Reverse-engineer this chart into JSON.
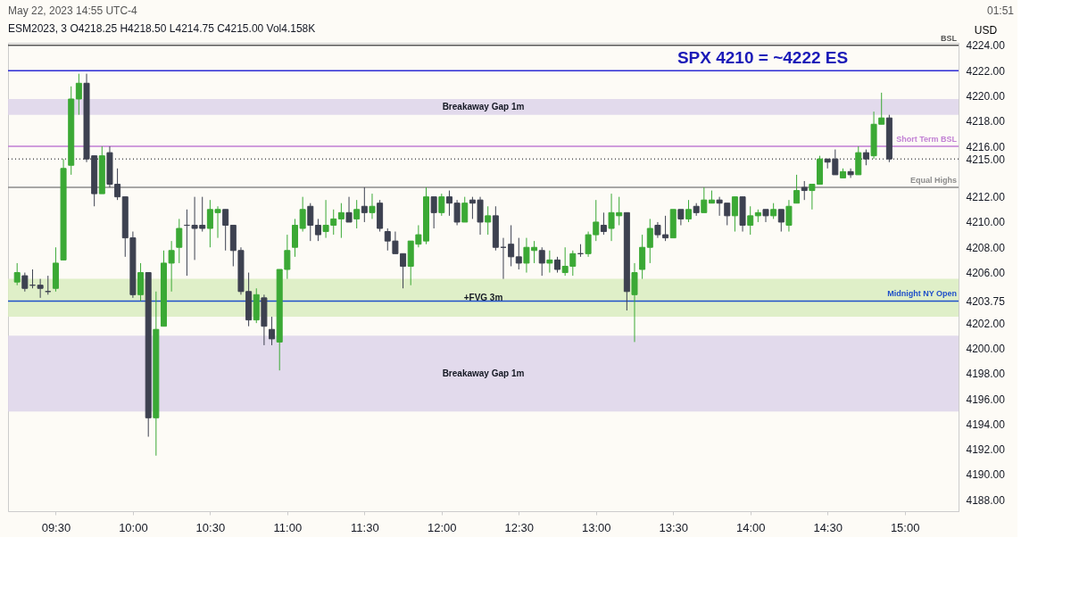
{
  "chart_data": {
    "type": "candlestick",
    "title": "ESM2023, 3  O4218.25  H4218.50  L4214.75  C4215.00  Vol4.158K",
    "ylabel": "USD",
    "x": [
      9.25,
      9.3,
      9.35,
      9.4,
      9.45,
      9.5,
      9.55,
      9.6,
      9.65,
      9.7,
      9.75,
      9.8,
      9.85,
      9.9,
      9.95,
      10,
      10.05,
      10.1,
      10.15,
      10.2,
      10.25,
      10.3,
      10.35,
      10.4,
      10.45,
      10.5,
      10.55,
      10.6,
      10.65,
      10.7,
      10.75,
      10.8,
      10.85,
      10.9,
      10.95,
      11,
      11.05,
      11.1,
      11.15,
      11.2,
      11.25,
      11.3,
      11.35,
      11.4,
      11.45,
      11.5,
      11.55,
      11.6,
      11.65,
      11.7,
      11.75,
      11.8,
      11.85,
      11.9,
      11.95,
      12,
      12.05,
      12.1,
      12.15,
      12.2,
      12.25,
      12.3,
      12.35,
      12.4,
      12.45,
      12.5,
      12.55,
      12.6,
      12.65,
      12.7,
      12.75,
      12.8,
      12.85,
      12.9,
      12.95,
      13,
      13.05,
      13.1,
      13.15,
      13.2,
      13.25,
      13.3,
      13.35,
      13.4,
      13.45,
      13.5,
      13.55,
      13.6,
      13.65,
      13.7,
      13.75,
      13.8,
      13.85,
      13.9,
      13.95,
      14,
      14.05,
      14.1,
      14.15,
      14.2,
      14.25,
      14.3,
      14.35,
      14.4,
      14.45,
      14.5,
      14.55,
      14.6,
      14.65,
      14.7,
      14.75,
      14.8,
      14.85,
      14.9
    ],
    "ohlc": [
      [
        4205.25,
        4206.75,
        4205,
        4206
      ],
      [
        4205.75,
        4206,
        4204.5,
        4204.75
      ],
      [
        4205,
        4206.25,
        4204.75,
        4205
      ],
      [
        4205,
        4205.5,
        4204,
        4204.75
      ],
      [
        4204.5,
        4205.75,
        4204.25,
        4204.5
      ],
      [
        4204.75,
        4208,
        4204.5,
        4206.75
      ],
      [
        4207,
        4215,
        4207,
        4214.25
      ],
      [
        4214.5,
        4220.75,
        4213.75,
        4219.75
      ],
      [
        4219.75,
        4221.75,
        4218.5,
        4221
      ],
      [
        4221,
        4221.75,
        4214.75,
        4215
      ],
      [
        4215.25,
        4215.25,
        4211.25,
        4212.25
      ],
      [
        4212.25,
        4216,
        4212.25,
        4215.25
      ],
      [
        4215.5,
        4216,
        4212.75,
        4213
      ],
      [
        4213,
        4214.25,
        4211.75,
        4212
      ],
      [
        4212,
        4212,
        4207.25,
        4208.75
      ],
      [
        4208.75,
        4209.25,
        4204,
        4204.25
      ],
      [
        4204.25,
        4206.75,
        4203.75,
        4206
      ],
      [
        4206,
        4206,
        4193,
        4194.5
      ],
      [
        4194.5,
        4204.5,
        4191.5,
        4201.5
      ],
      [
        4201.75,
        4207.75,
        4201.75,
        4206.75
      ],
      [
        4206.75,
        4208.5,
        4204.5,
        4207.75
      ],
      [
        4208,
        4210.25,
        4206.75,
        4209.5
      ],
      [
        4209.75,
        4211,
        4205.75,
        4209.75
      ],
      [
        4209.75,
        4212,
        4207,
        4209.5
      ],
      [
        4209.75,
        4212,
        4209.25,
        4209.5
      ],
      [
        4209.5,
        4211.75,
        4208,
        4211
      ],
      [
        4210.75,
        4211.25,
        4208.75,
        4211
      ],
      [
        4211,
        4211,
        4207.75,
        4209.75
      ],
      [
        4209.75,
        4209.75,
        4206.5,
        4207.75
      ],
      [
        4207.75,
        4208,
        4204.25,
        4204.5
      ],
      [
        4204.5,
        4206,
        4201.75,
        4202.25
      ],
      [
        4202.25,
        4204.75,
        4202,
        4204.25
      ],
      [
        4204,
        4204.25,
        4200.25,
        4201.75
      ],
      [
        4201.5,
        4202.5,
        4200.25,
        4200.75
      ],
      [
        4200.5,
        4206.25,
        4198.25,
        4206.25
      ],
      [
        4206.25,
        4209,
        4205.5,
        4207.75
      ],
      [
        4208,
        4210.25,
        4207.25,
        4209.75
      ],
      [
        4209.5,
        4212,
        4209.25,
        4211
      ],
      [
        4211.25,
        4211.5,
        4208.5,
        4209.75
      ],
      [
        4209.75,
        4210.25,
        4208.5,
        4209
      ],
      [
        4209.25,
        4211.75,
        4208.75,
        4209.75
      ],
      [
        4209.75,
        4211,
        4209,
        4210.25
      ],
      [
        4210.25,
        4211.5,
        4208.75,
        4210.75
      ],
      [
        4210.75,
        4212,
        4210,
        4210
      ],
      [
        4210.25,
        4211.75,
        4209.5,
        4211
      ],
      [
        4211.25,
        4212.75,
        4210,
        4210.75
      ],
      [
        4210.75,
        4212.25,
        4210.25,
        4211.25
      ],
      [
        4211.5,
        4211.75,
        4209.25,
        4209.5
      ],
      [
        4209.25,
        4209.5,
        4207.75,
        4208.5
      ],
      [
        4208.5,
        4209.25,
        4207.5,
        4207.5
      ],
      [
        4207.5,
        4207.5,
        4204.75,
        4206.5
      ],
      [
        4206.5,
        4208.5,
        4205,
        4208.5
      ],
      [
        4208.25,
        4209.75,
        4208,
        4209
      ],
      [
        4208.5,
        4212.75,
        4208.25,
        4212
      ],
      [
        4212,
        4212,
        4209.5,
        4210.75
      ],
      [
        4210.75,
        4212.25,
        4210.5,
        4212
      ],
      [
        4212,
        4212.5,
        4210.5,
        4211.5
      ],
      [
        4211.5,
        4211.75,
        4209.75,
        4210
      ],
      [
        4210,
        4212,
        4210,
        4211.5
      ],
      [
        4211.75,
        4212,
        4210.25,
        4211.5
      ],
      [
        4211.75,
        4212,
        4209,
        4210
      ],
      [
        4210,
        4211.25,
        4209,
        4210.5
      ],
      [
        4210.5,
        4211.25,
        4207.75,
        4208
      ],
      [
        4208,
        4208.75,
        4205.5,
        4208
      ],
      [
        4208.25,
        4209.75,
        4206.5,
        4207.25
      ],
      [
        4207.25,
        4208.75,
        4206.25,
        4206.75
      ],
      [
        4206.75,
        4208.75,
        4206,
        4208
      ],
      [
        4207.75,
        4208.5,
        4206.75,
        4208
      ],
      [
        4207.75,
        4208,
        4205.75,
        4206.75
      ],
      [
        4206.75,
        4207.75,
        4206,
        4207
      ],
      [
        4207,
        4207.25,
        4206,
        4206.25
      ],
      [
        4206,
        4208,
        4205.75,
        4206.5
      ],
      [
        4206.5,
        4207.75,
        4205.75,
        4207.5
      ],
      [
        4207.5,
        4208.25,
        4207.25,
        4207.5
      ],
      [
        4207.5,
        4209.25,
        4207.25,
        4209
      ],
      [
        4209,
        4211.75,
        4208.5,
        4210
      ],
      [
        4209.75,
        4210.75,
        4209,
        4209.25
      ],
      [
        4209.5,
        4212.25,
        4208.5,
        4210.75
      ],
      [
        4210.5,
        4212,
        4209.75,
        4210.75
      ],
      [
        4210.75,
        4210.75,
        4203,
        4204.5
      ],
      [
        4204.25,
        4206.75,
        4200.5,
        4206
      ],
      [
        4206.25,
        4209,
        4205.5,
        4208
      ],
      [
        4208,
        4210.25,
        4206.75,
        4209.5
      ],
      [
        4209.75,
        4210,
        4208.75,
        4209
      ],
      [
        4209,
        4210.5,
        4208.5,
        4208.75
      ],
      [
        4208.75,
        4211,
        4208.75,
        4211
      ],
      [
        4211,
        4211,
        4209.75,
        4210.25
      ],
      [
        4210.25,
        4211.75,
        4210,
        4211
      ],
      [
        4211.25,
        4211.5,
        4210.5,
        4210.75
      ],
      [
        4210.75,
        4212.75,
        4210.75,
        4211.75
      ],
      [
        4211.5,
        4212.5,
        4211.5,
        4211.75
      ],
      [
        4211.75,
        4212,
        4210.5,
        4211.5
      ],
      [
        4211.5,
        4211.5,
        4209.75,
        4210.5
      ],
      [
        4210.5,
        4212,
        4209.25,
        4212
      ],
      [
        4212,
        4212,
        4209.25,
        4209.75
      ],
      [
        4209.75,
        4211.25,
        4209,
        4210.5
      ],
      [
        4210.5,
        4211,
        4210,
        4210.75
      ],
      [
        4211,
        4211,
        4210,
        4210.5
      ],
      [
        4210.5,
        4211.5,
        4210.25,
        4211
      ],
      [
        4211,
        4211,
        4209.25,
        4210
      ],
      [
        4209.75,
        4211.75,
        4209.25,
        4211.25
      ],
      [
        4211.5,
        4213.75,
        4211.5,
        4212.5
      ],
      [
        4212.75,
        4213.25,
        4211.75,
        4212.5
      ],
      [
        4212.5,
        4213,
        4211,
        4213
      ],
      [
        4213,
        4215.25,
        4213,
        4215
      ],
      [
        4215,
        4215,
        4214.25,
        4214.75
      ],
      [
        4215,
        4215.75,
        4213.75,
        4213.75
      ],
      [
        4213.5,
        4214.25,
        4213.5,
        4214
      ],
      [
        4214,
        4214.25,
        4213.5,
        4213.75
      ],
      [
        4213.75,
        4216,
        4213.75,
        4215.5
      ],
      [
        4215.5,
        4215.75,
        4214.5,
        4215
      ],
      [
        4215.25,
        4218.75,
        4215,
        4217.75
      ],
      [
        4217.75,
        4220.25,
        4217.75,
        4218.25
      ],
      [
        4218.25,
        4218.5,
        4214.75,
        4215
      ]
    ],
    "colors": [
      "#3ba935",
      "#3d4150",
      "#3d4150",
      "#3d4150",
      "#3d4150",
      "#3ba935",
      "#3ba935",
      "#3ba935",
      "#3ba935",
      "#3d4150",
      "#3d4150",
      "#3ba935",
      "#3d4150",
      "#3d4150",
      "#3d4150",
      "#3d4150",
      "#3ba935",
      "#3d4150",
      "#3ba935",
      "#3ba935",
      "#3ba935",
      "#3ba935",
      "#3d4150",
      "#3d4150",
      "#3d4150",
      "#3ba935",
      "#3ba935",
      "#3d4150",
      "#3d4150",
      "#3d4150",
      "#3d4150",
      "#3ba935",
      "#3d4150",
      "#3d4150",
      "#3ba935",
      "#3ba935",
      "#3ba935",
      "#3ba935",
      "#3d4150",
      "#3d4150",
      "#3ba935",
      "#3ba935",
      "#3ba935",
      "#3d4150",
      "#3ba935",
      "#3d4150",
      "#3ba935",
      "#3d4150",
      "#3d4150",
      "#3d4150",
      "#3d4150",
      "#3ba935",
      "#3ba935",
      "#3ba935",
      "#3d4150",
      "#3ba935",
      "#3d4150",
      "#3d4150",
      "#3ba935",
      "#3d4150",
      "#3d4150",
      "#3ba935",
      "#3d4150",
      "#3d4150",
      "#3d4150",
      "#3d4150",
      "#3ba935",
      "#3ba935",
      "#3d4150",
      "#3ba935",
      "#3d4150",
      "#3ba935",
      "#3ba935",
      "#3d4150",
      "#3ba935",
      "#3ba935",
      "#3d4150",
      "#3ba935",
      "#3ba935",
      "#3d4150",
      "#3ba935",
      "#3ba935",
      "#3ba935",
      "#3d4150",
      "#3d4150",
      "#3ba935",
      "#3d4150",
      "#3ba935",
      "#3d4150",
      "#3ba935",
      "#3ba935",
      "#3d4150",
      "#3d4150",
      "#3ba935",
      "#3d4150",
      "#3ba935",
      "#3ba935",
      "#3d4150",
      "#3ba935",
      "#3d4150",
      "#3ba935",
      "#3ba935",
      "#3d4150",
      "#3ba935",
      "#3ba935",
      "#3d4150",
      "#3d4150",
      "#3ba935",
      "#3d4150",
      "#3ba935",
      "#3d4150",
      "#3ba935",
      "#3ba935",
      "#3d4150"
    ],
    "xlim": [
      9.22,
      15.32
    ],
    "xticks": [
      {
        "value": 9.5,
        "label": "09:30"
      },
      {
        "value": 10,
        "label": "10:00"
      },
      {
        "value": 10.5,
        "label": "10:30"
      },
      {
        "value": 11,
        "label": "11:00"
      },
      {
        "value": 11.5,
        "label": "11:30"
      },
      {
        "value": 12,
        "label": "12:00"
      },
      {
        "value": 12.5,
        "label": "12:30"
      },
      {
        "value": 13,
        "label": "13:00"
      },
      {
        "value": 13.5,
        "label": "13:30"
      },
      {
        "value": 14,
        "label": "14:00"
      },
      {
        "value": 14.5,
        "label": "14:30"
      },
      {
        "value": 15,
        "label": "15:00"
      }
    ],
    "ylim": [
      4187.1,
      4224.2
    ],
    "yticks": [
      {
        "value": 4188,
        "label": "4188.00"
      },
      {
        "value": 4190,
        "label": "4190.00"
      },
      {
        "value": 4192,
        "label": "4192.00"
      },
      {
        "value": 4194,
        "label": "4194.00"
      },
      {
        "value": 4196,
        "label": "4196.00"
      },
      {
        "value": 4198,
        "label": "4198.00"
      },
      {
        "value": 4200,
        "label": "4200.00"
      },
      {
        "value": 4202,
        "label": "4202.00"
      },
      {
        "value": 4203.75,
        "label": "4203.75"
      },
      {
        "value": 4206,
        "label": "4206.00"
      },
      {
        "value": 4208,
        "label": "4208.00"
      },
      {
        "value": 4210,
        "label": "4210.00"
      },
      {
        "value": 4212,
        "label": "4212.00"
      },
      {
        "value": 4215,
        "label": "4215.00"
      },
      {
        "value": 4216,
        "label": "4216.00"
      },
      {
        "value": 4218,
        "label": "4218.00"
      },
      {
        "value": 4220,
        "label": "4220.00"
      },
      {
        "value": 4222,
        "label": "4222.00"
      },
      {
        "value": 4224,
        "label": "4224.00"
      }
    ],
    "ref_lines": [
      {
        "axis": "y",
        "value": 4224,
        "label": "BSL",
        "color": "#555555"
      },
      {
        "axis": "y",
        "value": 4222,
        "color": "#2b2bd4"
      },
      {
        "axis": "y",
        "value": 4216,
        "label": "Short Term BSL",
        "color": "#c17fd4"
      },
      {
        "axis": "y",
        "value": 4215,
        "color": "#555555",
        "line_style": "dotted"
      },
      {
        "axis": "y",
        "value": 4212.75,
        "label": "Equal Highs",
        "color": "#8c8c8c"
      },
      {
        "axis": "y",
        "value": 4203.75,
        "label": "Midnight NY Open",
        "color": "#1f4fc9"
      }
    ],
    "bands": [
      {
        "axis": "y",
        "from": 4218.5,
        "to": 4219.75,
        "label": "Breakaway Gap 1m",
        "color": "#ddd4ea"
      },
      {
        "axis": "y",
        "from": 4202.5,
        "to": 4205.5,
        "label": "+FVG 3m",
        "color": "#d9ecbf"
      },
      {
        "axis": "y",
        "from": 4195,
        "to": 4201,
        "label": "Breakaway Gap 1m",
        "color": "#ddd4ea"
      }
    ],
    "annotations": [
      "May 22, 2023 14:55 UTC-4",
      "01:51",
      {
        "text": "SPX 4210 = ~4222 ES",
        "x": 14.08,
        "y": 4222
      }
    ]
  }
}
